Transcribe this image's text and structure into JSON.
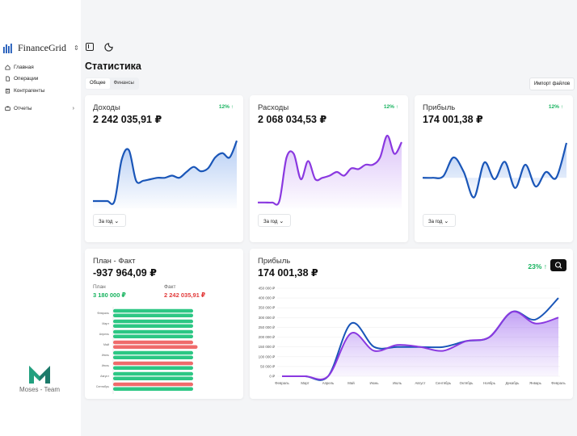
{
  "app": {
    "brand": "FinanceGrid",
    "footer": "Moses - Team"
  },
  "sidebar": {
    "items": [
      {
        "label": "Главная",
        "icon": "home-icon"
      },
      {
        "label": "Операции",
        "icon": "document-icon"
      },
      {
        "label": "Контрагенты",
        "icon": "building-icon"
      }
    ],
    "reports": {
      "label": "Отчеты",
      "icon": "card-icon"
    }
  },
  "page": {
    "title": "Статистика",
    "import_label": "Импорт файлов"
  },
  "tabs": [
    {
      "label": "Общее",
      "active": true
    },
    {
      "label": "Финансы",
      "active": false
    }
  ],
  "colors": {
    "accent_blue": "#1a56b8",
    "accent_purple": "#8a38e0",
    "green": "#16b35e",
    "red": "#e23b3b",
    "bar_green": "#2cc784",
    "bar_red": "#ef6b6b"
  },
  "cards": {
    "income": {
      "title": "Доходы",
      "value": "2 242 035,91 ₽",
      "badge": "12% ↑",
      "period": "За год"
    },
    "expenses": {
      "title": "Расходы",
      "value": "2 068 034,53 ₽",
      "badge": "12% ↑",
      "period": "За год"
    },
    "profit": {
      "title": "Прибыль",
      "value": "174 001,38 ₽",
      "badge": "12% ↑",
      "period": "За год"
    }
  },
  "plan_fact": {
    "title": "План - Факт",
    "value": "-937 964,09 ₽",
    "plan_label": "План",
    "plan_value": "3 180 000 ₽",
    "fact_label": "Факт",
    "fact_value": "2 242 035,91 ₽"
  },
  "profit_big": {
    "title": "Прибыль",
    "value": "174 001,38 ₽",
    "badge": "23% ↑"
  },
  "chart_data": [
    {
      "type": "area",
      "title": "Доходы",
      "series": [
        {
          "name": "Доходы",
          "values": [
            0.9,
            0.9,
            0.9,
            0.9,
            0.33,
            0.2,
            0.62,
            0.62,
            0.6,
            0.58,
            0.58,
            0.55,
            0.58,
            0.5,
            0.43,
            0.49,
            0.45,
            0.3,
            0.24,
            0.3,
            0.07
          ]
        }
      ]
    },
    {
      "type": "area",
      "title": "Расходы",
      "series": [
        {
          "name": "Расходы",
          "values": [
            0.92,
            0.92,
            0.92,
            0.9,
            0.3,
            0.25,
            0.6,
            0.35,
            0.6,
            0.58,
            0.55,
            0.5,
            0.55,
            0.45,
            0.46,
            0.4,
            0.4,
            0.3,
            0.0,
            0.25,
            0.09
          ]
        }
      ]
    },
    {
      "type": "area",
      "title": "Прибыль",
      "series": [
        {
          "name": "Прибыль",
          "values": [
            0.58,
            0.58,
            0.56,
            0.3,
            0.5,
            0.85,
            0.37,
            0.6,
            0.36,
            0.72,
            0.4,
            0.7,
            0.5,
            0.58,
            0.1
          ]
        }
      ]
    },
    {
      "type": "bar",
      "title": "План - Факт",
      "categories": [
        "Февраль",
        "Март",
        "Апрель",
        "Май",
        "Июнь",
        "Июль",
        "Август",
        "Сентябрь"
      ],
      "series": [
        {
          "name": "План",
          "values": [
            90,
            90,
            90,
            90,
            90,
            90,
            90,
            90
          ]
        },
        {
          "name": "Факт",
          "values": [
            90,
            90,
            90,
            95,
            90,
            90,
            90,
            90
          ]
        }
      ],
      "xlim": [
        0,
        100
      ]
    },
    {
      "type": "area",
      "title": "Прибыль",
      "categories": [
        "Февраль",
        "Март",
        "Апрель",
        "Май",
        "Июнь",
        "Июль",
        "Август",
        "Сентябрь",
        "Октябрь",
        "Ноябрь",
        "Декабрь",
        "Январь",
        "Февраль"
      ],
      "yticks": [
        "450 000 ₽",
        "400 000 ₽",
        "350 000 ₽",
        "300 000 ₽",
        "250 000 ₽",
        "200 000 ₽",
        "150 000 ₽",
        "100 000 ₽",
        "50 000 ₽",
        "0 ₽"
      ],
      "ylim": [
        0,
        450000
      ],
      "series": [
        {
          "name": "Прибыль",
          "values": [
            0,
            0,
            0,
            270000,
            150000,
            150000,
            150000,
            150000,
            180000,
            200000,
            330000,
            290000,
            400000
          ]
        },
        {
          "name": "Расходы",
          "values": [
            0,
            0,
            0,
            220000,
            130000,
            160000,
            150000,
            130000,
            180000,
            200000,
            330000,
            270000,
            300000
          ]
        }
      ]
    }
  ]
}
